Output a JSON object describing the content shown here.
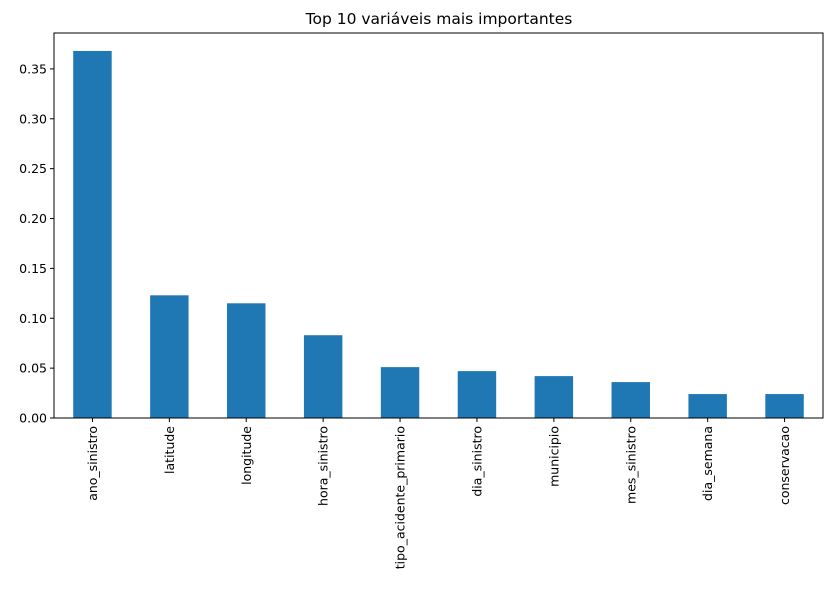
{
  "chart_data": {
    "type": "bar",
    "title": "Top 10 variáveis mais importantes",
    "xlabel": "",
    "ylabel": "",
    "categories": [
      "ano_sinistro",
      "latitude",
      "longitude",
      "hora_sinistro",
      "tipo_acidente_primario",
      "dia_sinistro",
      "municipio",
      "mes_sinistro",
      "dia_semana",
      "conservacao"
    ],
    "values": [
      0.368,
      0.123,
      0.115,
      0.083,
      0.051,
      0.047,
      0.042,
      0.036,
      0.024,
      0.024
    ],
    "ylim": [
      0,
      0.386
    ],
    "yticks": [
      0.0,
      0.05,
      0.1,
      0.15,
      0.2,
      0.25,
      0.3,
      0.35
    ],
    "ytick_labels": [
      "0.00",
      "0.05",
      "0.10",
      "0.15",
      "0.20",
      "0.25",
      "0.30",
      "0.35"
    ],
    "bar_color": "#1f77b4",
    "grid": false,
    "legend": "none"
  }
}
